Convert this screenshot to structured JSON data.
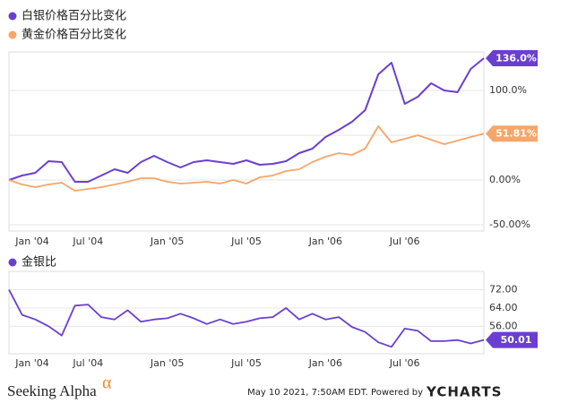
{
  "chart_data": [
    {
      "type": "line",
      "categories": [
        "Jan '04",
        null,
        null,
        null,
        null,
        null,
        "Jul '04",
        null,
        null,
        null,
        null,
        null,
        "Jan '05",
        null,
        null,
        null,
        null,
        null,
        "Jul '05",
        null,
        null,
        null,
        null,
        null,
        "Jan '06",
        null,
        null,
        null,
        null,
        null,
        "Jul '06",
        null,
        null,
        null,
        null,
        null,
        null
      ],
      "series": [
        {
          "name": "白银价格百分比变化",
          "color": "#6a3fd0",
          "values": [
            0,
            5,
            8,
            21,
            20,
            -2,
            -2,
            5,
            12,
            8,
            20,
            27,
            20,
            14,
            20,
            22,
            20,
            18,
            22,
            17,
            18,
            21,
            30,
            35,
            48,
            56,
            65,
            78,
            118,
            131,
            85,
            93,
            108,
            100,
            98,
            124,
            136
          ],
          "value_labels": [
            null,
            null,
            null,
            null,
            null,
            null,
            null,
            null,
            null,
            null,
            null,
            null,
            null,
            null,
            null,
            null,
            null,
            null,
            null,
            null,
            null,
            null,
            null,
            null,
            null,
            null,
            null,
            null,
            null,
            null,
            null,
            null,
            null,
            null,
            null,
            null,
            "136.0%"
          ]
        },
        {
          "name": "黄金价格百分比变化",
          "color": "#f6a66a",
          "values": [
            0,
            -5,
            -8,
            -5,
            -3,
            -12,
            -10,
            -8,
            -5,
            -2,
            2,
            2,
            -2,
            -4,
            -3,
            -2,
            -4,
            0,
            -4,
            3,
            5,
            10,
            12,
            20,
            26,
            30,
            28,
            35,
            60,
            42,
            46,
            50,
            45,
            40,
            44,
            48,
            51.81
          ],
          "value_labels": [
            null,
            null,
            null,
            null,
            null,
            null,
            null,
            null,
            null,
            null,
            null,
            null,
            null,
            null,
            null,
            null,
            null,
            null,
            null,
            null,
            null,
            null,
            null,
            null,
            null,
            null,
            null,
            null,
            null,
            null,
            null,
            null,
            null,
            null,
            null,
            null,
            "51.81%"
          ]
        }
      ],
      "ylim": [
        -57,
        143
      ],
      "yticks": [
        {
          "value": -50,
          "label": "-50.00%"
        },
        {
          "value": 0,
          "label": "0.00%"
        },
        {
          "value": 50,
          "label": "50.00%"
        },
        {
          "value": 100,
          "label": "100.0%"
        }
      ],
      "grid": true
    },
    {
      "type": "line",
      "categories": [
        "Jan '04",
        null,
        null,
        null,
        null,
        null,
        "Jul '04",
        null,
        null,
        null,
        null,
        null,
        "Jan '05",
        null,
        null,
        null,
        null,
        null,
        "Jul '05",
        null,
        null,
        null,
        null,
        null,
        "Jan '06",
        null,
        null,
        null,
        null,
        null,
        "Jul '06",
        null,
        null,
        null,
        null,
        null,
        null
      ],
      "series": [
        {
          "name": "金银比",
          "color": "#6a3fd0",
          "values": [
            72,
            61,
            59,
            56,
            52,
            65,
            65.5,
            60,
            59,
            63,
            58,
            59,
            59.5,
            61.5,
            59.5,
            57,
            59,
            57,
            58,
            59.5,
            60,
            64,
            59,
            61.5,
            59,
            60,
            55.7,
            53.5,
            49,
            47,
            55,
            54,
            49.5,
            49.5,
            50,
            48.5,
            50.01
          ],
          "value_labels": [
            null,
            null,
            null,
            null,
            null,
            null,
            null,
            null,
            null,
            null,
            null,
            null,
            null,
            null,
            null,
            null,
            null,
            null,
            null,
            null,
            null,
            null,
            null,
            null,
            null,
            null,
            null,
            null,
            null,
            null,
            null,
            null,
            null,
            null,
            null,
            null,
            "50.01"
          ]
        }
      ],
      "ylim": [
        44,
        80
      ],
      "yticks": [
        {
          "value": 56,
          "label": "56.00"
        },
        {
          "value": 64,
          "label": "64.00"
        },
        {
          "value": 72,
          "label": "72.00"
        }
      ],
      "grid": true
    }
  ],
  "footer": {
    "brand": "Seeking Alpha",
    "brand_mark": "α",
    "timestamp": "May 10 2021, 7:50AM EDT.  Powered by",
    "source": "YCHARTS"
  }
}
